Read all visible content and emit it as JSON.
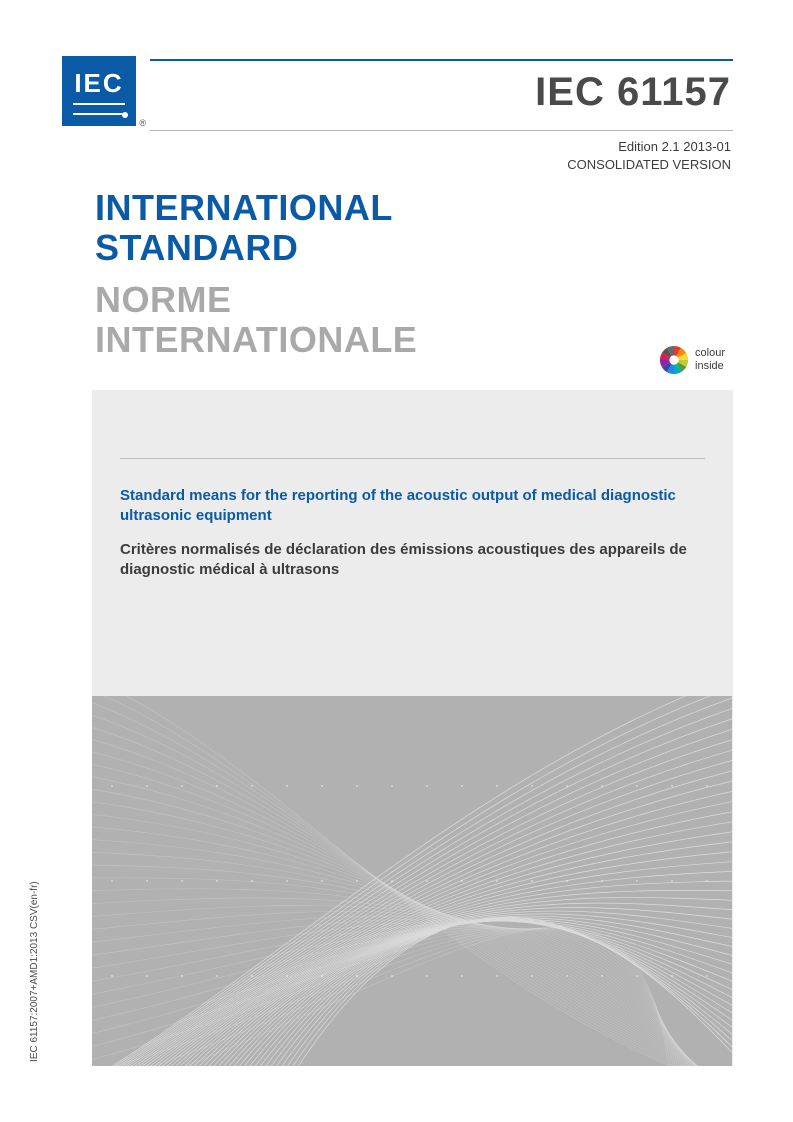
{
  "logo": {
    "text": "IEC",
    "registered": "®"
  },
  "doc_id": "IEC 61157",
  "edition": {
    "line1": "Edition 2.1    2013-01",
    "line2": "CONSOLIDATED VERSION"
  },
  "heading": {
    "en_l1": "INTERNATIONAL",
    "en_l2": "STANDARD",
    "fr_l1": "NORME",
    "fr_l2": "INTERNATIONALE"
  },
  "colour_badge": {
    "l1": "colour",
    "l2": "inside"
  },
  "titles": {
    "en": "Standard means for the reporting of the acoustic output of medical diagnostic ultrasonic equipment",
    "fr": "Critères normalisés de déclaration des émissions acoustiques des appareils de diagnostic médical à ultrasons"
  },
  "spine": "IEC 61157:2007+AMD1:2013  CSV(en-fr)",
  "colors": {
    "brand": "#0b5aa6",
    "grey_text": "#4a4a4a",
    "light_grey_text": "#a9a9a9",
    "panel_bg": "#ececec",
    "rule_light": "#b8b8b8",
    "rule_panel": "#bcbcbc",
    "body_text": "#3c3c3c",
    "wave_bg": "#b1b1b1",
    "wave_line": "#ffffff"
  },
  "colour_wheel_slices": [
    "#e53935",
    "#fb8c00",
    "#fdd835",
    "#c0ca33",
    "#43a047",
    "#00acc1",
    "#1e88e5",
    "#3949ab",
    "#8e24aa",
    "#d81b60",
    "#6d4c41",
    "#546e7a"
  ]
}
